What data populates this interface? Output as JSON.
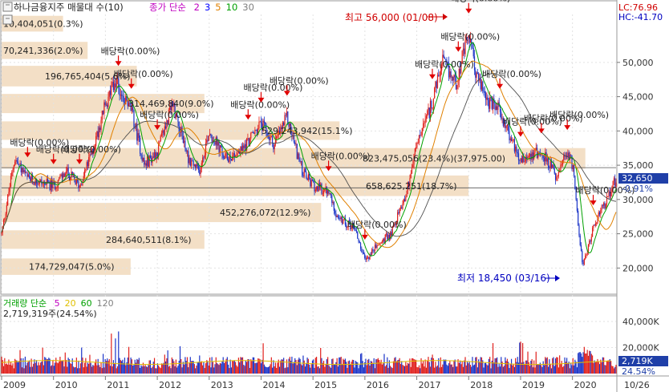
{
  "chart_data": {
    "type": "candlestick",
    "title": "하나금융지주 매물대 수(10)",
    "price_ma": {
      "label": "종가 단순",
      "periods": [
        "2",
        "3",
        "5",
        "10",
        "30"
      ],
      "colors": [
        "#c000c0",
        "#0000ff",
        "#e08000",
        "#00a000",
        "#808080"
      ]
    },
    "volume_ma": {
      "label": "거래량 단순",
      "periods": [
        "5",
        "20",
        "60",
        "120"
      ],
      "colors": [
        "#c000c0",
        "#e0c000",
        "#00a000",
        "#808080"
      ]
    },
    "lc": "LC:76.96",
    "hc": "HC:-41.70",
    "current_price": "32,650",
    "current_change": "-0.91%",
    "volume_current": "2,719K",
    "volume_current_pct": "24.54%",
    "volume_header": "2,719,319주(24.54%)",
    "x_axis_labels": [
      "2009",
      "2010",
      "2011",
      "2012",
      "2013",
      "2014",
      "2015",
      "2016",
      "2017",
      "2018",
      "2019",
      "2020",
      "10/26"
    ],
    "price_y_ticks": [
      "50,000",
      "45,000",
      "40,000",
      "35,000",
      "30,000",
      "25,000",
      "20,000"
    ],
    "volume_y_ticks": [
      "40,000K",
      "20,000K"
    ],
    "price_ylim": [
      17000,
      57000
    ],
    "volume_ylim": [
      0,
      48000
    ],
    "price_path": [
      [
        2009.0,
        25000
      ],
      [
        2009.25,
        36000
      ],
      [
        2009.5,
        33000
      ],
      [
        2009.75,
        32500
      ],
      [
        2010.0,
        32000
      ],
      [
        2010.25,
        34000
      ],
      [
        2010.5,
        32000
      ],
      [
        2010.75,
        37000
      ],
      [
        2011.0,
        44000
      ],
      [
        2011.2,
        47000
      ],
      [
        2011.5,
        43000
      ],
      [
        2011.75,
        35000
      ],
      [
        2012.0,
        37000
      ],
      [
        2012.3,
        44000
      ],
      [
        2012.6,
        36000
      ],
      [
        2012.8,
        34000
      ],
      [
        2013.0,
        40000
      ],
      [
        2013.3,
        36000
      ],
      [
        2013.6,
        37000
      ],
      [
        2013.8,
        39000
      ],
      [
        2014.0,
        41000
      ],
      [
        2014.25,
        38000
      ],
      [
        2014.5,
        42000
      ],
      [
        2014.8,
        34000
      ],
      [
        2015.0,
        32000
      ],
      [
        2015.3,
        31000
      ],
      [
        2015.5,
        27000
      ],
      [
        2015.8,
        26000
      ],
      [
        2016.0,
        21000
      ],
      [
        2016.2,
        23000
      ],
      [
        2016.5,
        25000
      ],
      [
        2016.8,
        31000
      ],
      [
        2017.0,
        38000
      ],
      [
        2017.25,
        43000
      ],
      [
        2017.5,
        50000
      ],
      [
        2017.75,
        47000
      ],
      [
        2018.0,
        54000
      ],
      [
        2018.15,
        48000
      ],
      [
        2018.4,
        44000
      ],
      [
        2018.6,
        43000
      ],
      [
        2018.8,
        39000
      ],
      [
        2019.0,
        36000
      ],
      [
        2019.3,
        37000
      ],
      [
        2019.5,
        36000
      ],
      [
        2019.7,
        33000
      ],
      [
        2019.9,
        37000
      ],
      [
        2020.0,
        35000
      ],
      [
        2020.2,
        20000
      ],
      [
        2020.4,
        26000
      ],
      [
        2020.6,
        29000
      ],
      [
        2020.8,
        32650
      ]
    ],
    "price_bands": [
      {
        "label": "10,404,051(0.3%)",
        "price_low": 54500,
        "price_high": 56800
      },
      {
        "label": "70,241,336(2.0%)",
        "price_low": 50500,
        "price_high": 53000
      },
      {
        "label": "196,765,404(5.6%)",
        "price_low": 46500,
        "price_high": 49500
      },
      {
        "label": "314,469,840(9.0%)",
        "price_low": 42600,
        "price_high": 45400
      },
      {
        "label": "529,243,942(15.1%)",
        "price_low": 38700,
        "price_high": 41400
      },
      {
        "label": "823,475,056(23.4%)(37,975.00)",
        "price_low": 34500,
        "price_high": 37500
      },
      {
        "label": "658,625,251(18.7%)",
        "price_low": 30500,
        "price_high": 33500
      },
      {
        "label": "452,276,072(12.9%)",
        "price_low": 26700,
        "price_high": 29500
      },
      {
        "label": "284,640,511(8.1%)",
        "price_low": 22800,
        "price_high": 25500
      },
      {
        "label": "174,729,047(5.0%)",
        "price_low": 19000,
        "price_high": 21400
      }
    ],
    "dividend_label": "배당락(0.00%)",
    "dividend_dates": [
      2009.5,
      2010.0,
      2010.5,
      2011.25,
      2011.5,
      2012.0,
      2013.75,
      2014.0,
      2014.5,
      2015.3,
      2016.0,
      2017.3,
      2017.8,
      2018.0,
      2018.6,
      2019.0,
      2019.4,
      2019.9,
      2020.4
    ],
    "annotations": [
      {
        "text": "최고 56,000 (01/08)",
        "color": "#d00000"
      },
      {
        "text": "최저 18,450 (03/16)",
        "color": "#0000c0"
      }
    ],
    "reference_lines": [
      34650,
      31700
    ]
  }
}
